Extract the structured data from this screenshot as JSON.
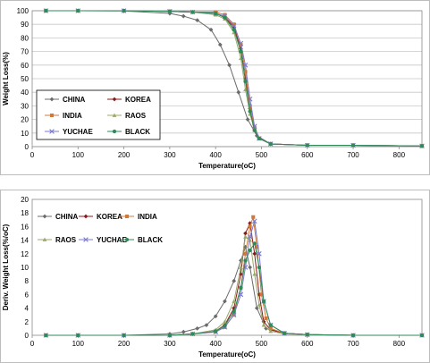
{
  "chart_data": [
    {
      "type": "line",
      "xlabel": "Temperature(oC)",
      "ylabel": "Weight Loss(%)",
      "xlim": [
        0,
        850
      ],
      "ylim": [
        0,
        100
      ],
      "xticks": [
        "0",
        "100",
        "200",
        "300",
        "400",
        "500",
        "600",
        "700",
        "800"
      ],
      "yticks": [
        "0",
        "10",
        "20",
        "30",
        "40",
        "50",
        "60",
        "70",
        "80",
        "90",
        "100"
      ],
      "grid": true,
      "legend": "inside-left",
      "series": [
        {
          "name": "CHINA",
          "color": "#6b6b6b",
          "marker": "diamond",
          "x": [
            30,
            100,
            200,
            300,
            330,
            360,
            390,
            410,
            430,
            450,
            470,
            490,
            520,
            600,
            700,
            850
          ],
          "y": [
            100,
            100,
            99.8,
            98,
            96,
            93,
            86,
            75,
            60,
            40,
            20,
            8,
            2,
            1,
            1,
            0.5
          ]
        },
        {
          "name": "KOREA",
          "color": "#8b1a1a",
          "marker": "diamond",
          "x": [
            30,
            100,
            200,
            300,
            350,
            400,
            420,
            440,
            455,
            465,
            475,
            485,
            495,
            520,
            600,
            700,
            850
          ],
          "y": [
            100,
            100,
            100,
            99.5,
            99,
            98,
            95,
            88,
            72,
            50,
            28,
            12,
            6,
            2,
            1,
            1,
            0.5
          ]
        },
        {
          "name": "INDIA",
          "color": "#d07a3a",
          "marker": "square",
          "x": [
            30,
            100,
            200,
            300,
            350,
            400,
            420,
            440,
            455,
            465,
            475,
            485,
            495,
            520,
            600,
            700,
            850
          ],
          "y": [
            100,
            100,
            100,
            99.5,
            99,
            99,
            97,
            90,
            75,
            55,
            30,
            14,
            6,
            2,
            1,
            1,
            0.5
          ]
        },
        {
          "name": "RAOS",
          "color": "#9aa86a",
          "marker": "triangle",
          "x": [
            30,
            100,
            200,
            300,
            350,
            400,
            420,
            440,
            455,
            465,
            475,
            485,
            495,
            520,
            600,
            700,
            850
          ],
          "y": [
            100,
            100,
            100,
            99.5,
            99,
            97,
            94,
            84,
            65,
            42,
            24,
            12,
            6,
            2,
            1,
            1,
            0.5
          ]
        },
        {
          "name": "YUCHAE",
          "color": "#7a7ad0",
          "marker": "cross",
          "x": [
            30,
            100,
            200,
            300,
            350,
            400,
            420,
            440,
            455,
            465,
            475,
            485,
            495,
            520,
            600,
            700,
            850
          ],
          "y": [
            100,
            100,
            100,
            99.5,
            99,
            98,
            96,
            89,
            76,
            60,
            35,
            15,
            6,
            2,
            1,
            1,
            0.5
          ]
        },
        {
          "name": "BLACK",
          "color": "#2e8b57",
          "marker": "circle",
          "x": [
            30,
            100,
            200,
            300,
            350,
            400,
            420,
            440,
            455,
            465,
            475,
            485,
            495,
            520,
            600,
            700,
            850
          ],
          "y": [
            100,
            100,
            100,
            99.5,
            99,
            98,
            95,
            86,
            70,
            48,
            26,
            12,
            6,
            2,
            1,
            1,
            0.5
          ]
        }
      ]
    },
    {
      "type": "line",
      "xlabel": "Temperature(oC)",
      "ylabel": "Deriv. Weight Loss(%/oC)",
      "xlim": [
        0,
        850
      ],
      "ylim": [
        0,
        20
      ],
      "xticks": [
        "0",
        "100",
        "200",
        "300",
        "400",
        "500",
        "600",
        "700",
        "800"
      ],
      "yticks": [
        "0",
        "2",
        "4",
        "6",
        "8",
        "10",
        "12",
        "14",
        "16",
        "18",
        "20"
      ],
      "grid": false,
      "legend": "top-left",
      "series": [
        {
          "name": "CHINA",
          "color": "#6b6b6b",
          "marker": "diamond",
          "x": [
            30,
            100,
            200,
            300,
            330,
            360,
            380,
            400,
            420,
            440,
            455,
            465,
            475,
            490,
            510,
            550,
            600,
            700,
            850
          ],
          "y": [
            0,
            0,
            0,
            0.2,
            0.5,
            1,
            1.5,
            2.8,
            5,
            8,
            11,
            13,
            10,
            4,
            1,
            0.3,
            0.1,
            0,
            0
          ]
        },
        {
          "name": "KOREA",
          "color": "#8b1a1a",
          "marker": "diamond",
          "x": [
            30,
            100,
            200,
            300,
            350,
            400,
            420,
            440,
            455,
            465,
            475,
            485,
            495,
            505,
            520,
            550,
            600,
            700,
            850
          ],
          "y": [
            0,
            0,
            0,
            0,
            0.2,
            0.6,
            1.5,
            4,
            9,
            15,
            16.5,
            12,
            6,
            2,
            0.8,
            0.3,
            0.1,
            0,
            0
          ]
        },
        {
          "name": "INDIA",
          "color": "#d07a3a",
          "marker": "square",
          "x": [
            30,
            100,
            200,
            300,
            350,
            400,
            420,
            440,
            455,
            465,
            475,
            482,
            490,
            500,
            510,
            520,
            550,
            600,
            700,
            850
          ],
          "y": [
            0,
            0,
            0,
            0,
            0.2,
            0.5,
            1.2,
            3,
            7,
            12,
            16,
            17.4,
            13,
            6,
            2.5,
            1,
            0.3,
            0.1,
            0,
            0
          ]
        },
        {
          "name": "RAOS",
          "color": "#9aa86a",
          "marker": "triangle",
          "x": [
            30,
            100,
            200,
            300,
            350,
            400,
            420,
            440,
            455,
            465,
            475,
            485,
            495,
            505,
            520,
            550,
            600,
            700,
            850
          ],
          "y": [
            0,
            0,
            0,
            0,
            0.2,
            0.8,
            2,
            5,
            10,
            14.5,
            14,
            9,
            4.5,
            1.5,
            0.6,
            0.2,
            0.1,
            0,
            0
          ]
        },
        {
          "name": "YUCHAE",
          "color": "#7a7ad0",
          "marker": "cross",
          "x": [
            30,
            100,
            200,
            300,
            350,
            400,
            420,
            440,
            455,
            465,
            475,
            485,
            495,
            505,
            520,
            550,
            600,
            700,
            850
          ],
          "y": [
            0,
            0,
            0,
            0,
            0.2,
            0.5,
            1.2,
            3,
            6,
            10,
            14.5,
            16.8,
            12,
            5,
            1.5,
            0.3,
            0.1,
            0,
            0
          ]
        },
        {
          "name": "BLACK",
          "color": "#2e8b57",
          "marker": "circle",
          "x": [
            30,
            100,
            200,
            300,
            350,
            400,
            420,
            440,
            455,
            465,
            475,
            485,
            495,
            505,
            520,
            550,
            600,
            700,
            850
          ],
          "y": [
            0,
            0,
            0,
            0,
            0.2,
            0.6,
            1.4,
            3.5,
            7,
            11,
            12.5,
            13.5,
            10,
            5,
            1.5,
            0.3,
            0.1,
            0,
            0
          ]
        }
      ]
    }
  ]
}
